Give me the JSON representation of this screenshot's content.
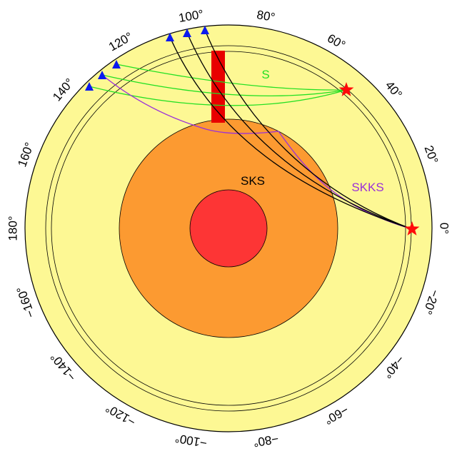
{
  "diagram": {
    "colors": {
      "mantle": "#fdf894",
      "outer_core": "#fc9a31",
      "inner_core": "#fd3535",
      "anomaly": "#e80000",
      "s_rays": "#22e022",
      "sks_rays": "#000000",
      "skks_ray": "#9b30d9",
      "stations": "#0a19ee",
      "events": "#ff0a0a"
    },
    "phase_labels": {
      "s": "S",
      "sks": "SKS",
      "skks": "SKKS"
    },
    "angle_ticks": [
      {
        "deg": 0,
        "label": "0°"
      },
      {
        "deg": 20,
        "label": "20°"
      },
      {
        "deg": 40,
        "label": "40°"
      },
      {
        "deg": 60,
        "label": "60°"
      },
      {
        "deg": 80,
        "label": "80°"
      },
      {
        "deg": 100,
        "label": "100°"
      },
      {
        "deg": 120,
        "label": "120°"
      },
      {
        "deg": 140,
        "label": "140°"
      },
      {
        "deg": 160,
        "label": "160°"
      },
      {
        "deg": 180,
        "label": "180°"
      },
      {
        "deg": -160,
        "label": "−160°"
      },
      {
        "deg": -140,
        "label": "−140°"
      },
      {
        "deg": -120,
        "label": "−120°"
      },
      {
        "deg": -100,
        "label": "−100°"
      },
      {
        "deg": -80,
        "label": "−80°"
      },
      {
        "deg": -60,
        "label": "−60°"
      },
      {
        "deg": -40,
        "label": "−40°"
      },
      {
        "deg": -20,
        "label": "−20°"
      }
    ],
    "events": [
      {
        "name": "event-s-source"
      },
      {
        "name": "event-sks-source"
      }
    ],
    "stations": [
      {
        "name": "station-s-1"
      },
      {
        "name": "station-s-2"
      },
      {
        "name": "station-s-3"
      },
      {
        "name": "station-sks-1"
      },
      {
        "name": "station-sks-2"
      },
      {
        "name": "station-sks-3"
      }
    ]
  }
}
